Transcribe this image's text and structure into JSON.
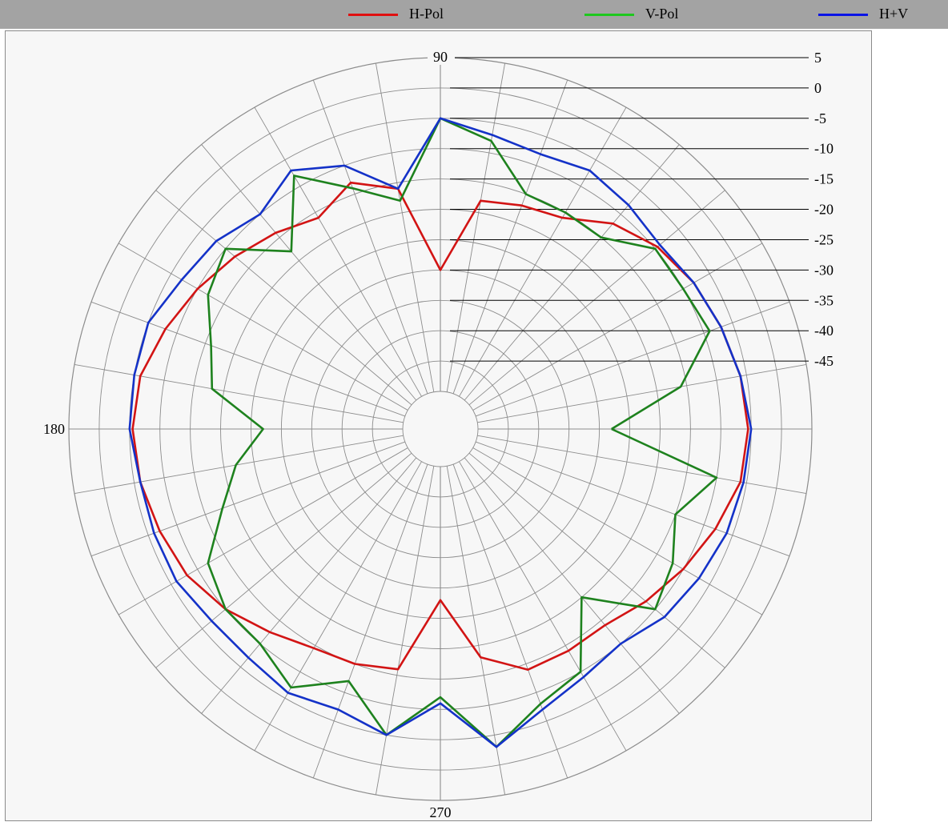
{
  "legend": {
    "items": [
      {
        "label": "H-Pol",
        "color": "#e01010"
      },
      {
        "label": "V-Pol",
        "color": "#1ec81e"
      },
      {
        "label": "H+V",
        "color": "#0a14e6"
      }
    ]
  },
  "chart_data": {
    "type": "polar-line",
    "radial_unit": "dB",
    "radial_range": [
      -50,
      5
    ],
    "radial_ticks": [
      5,
      0,
      -5,
      -10,
      -15,
      -20,
      -25,
      -30,
      -35,
      -40,
      -45
    ],
    "angle_labels": [
      {
        "angle": 90,
        "text": "90"
      },
      {
        "angle": 180,
        "text": "180"
      },
      {
        "angle": 270,
        "text": "270"
      }
    ],
    "angular_grid_step_deg": 10,
    "grid": true,
    "angles_deg": [
      0,
      10,
      20,
      30,
      40,
      50,
      60,
      70,
      80,
      90,
      100,
      110,
      120,
      130,
      140,
      150,
      160,
      170,
      180,
      190,
      200,
      210,
      220,
      230,
      240,
      250,
      260,
      270,
      280,
      290,
      300,
      310,
      320,
      330,
      340,
      350
    ],
    "series": [
      {
        "name": "H-Pol",
        "color": "#d21414",
        "values": [
          -5.5,
          -6,
          -7,
          -8,
          -9.5,
          -12,
          -16,
          -17,
          -18,
          -30,
          -16,
          -13,
          -16,
          -14,
          -12,
          -10,
          -8,
          -6,
          -5.5,
          -6,
          -7,
          -8,
          -10,
          -12.5,
          -14.5,
          -15,
          -16,
          -28,
          -18,
          -14,
          -14,
          -14,
          -12,
          -10,
          -8,
          -6
        ]
      },
      {
        "name": "V-Pol",
        "color": "#1e821e",
        "values": [
          -28,
          -16,
          -9,
          -10,
          -10,
          -15,
          -15,
          -15,
          -8,
          -5,
          -18,
          -14,
          -8,
          -18,
          -10,
          -12,
          -16,
          -18,
          -27,
          -22,
          -18,
          -12,
          -10,
          -10,
          -7,
          -12,
          -5,
          -12,
          -3,
          -8,
          -10,
          -20,
          -10,
          -12,
          -15,
          -10
        ]
      },
      {
        "name": "H+V",
        "color": "#1432c8",
        "values": [
          -5,
          -6,
          -7,
          -8,
          -9,
          -8,
          -7,
          -8,
          -7,
          -5,
          -16,
          -10,
          -7,
          -10,
          -8,
          -7,
          -5,
          -5,
          -5,
          -6,
          -6,
          -6,
          -7,
          -7,
          -6,
          -7,
          -5,
          -11,
          -3,
          -7,
          -9,
          -10,
          -8,
          -7,
          -6,
          -5.5
        ]
      }
    ]
  }
}
